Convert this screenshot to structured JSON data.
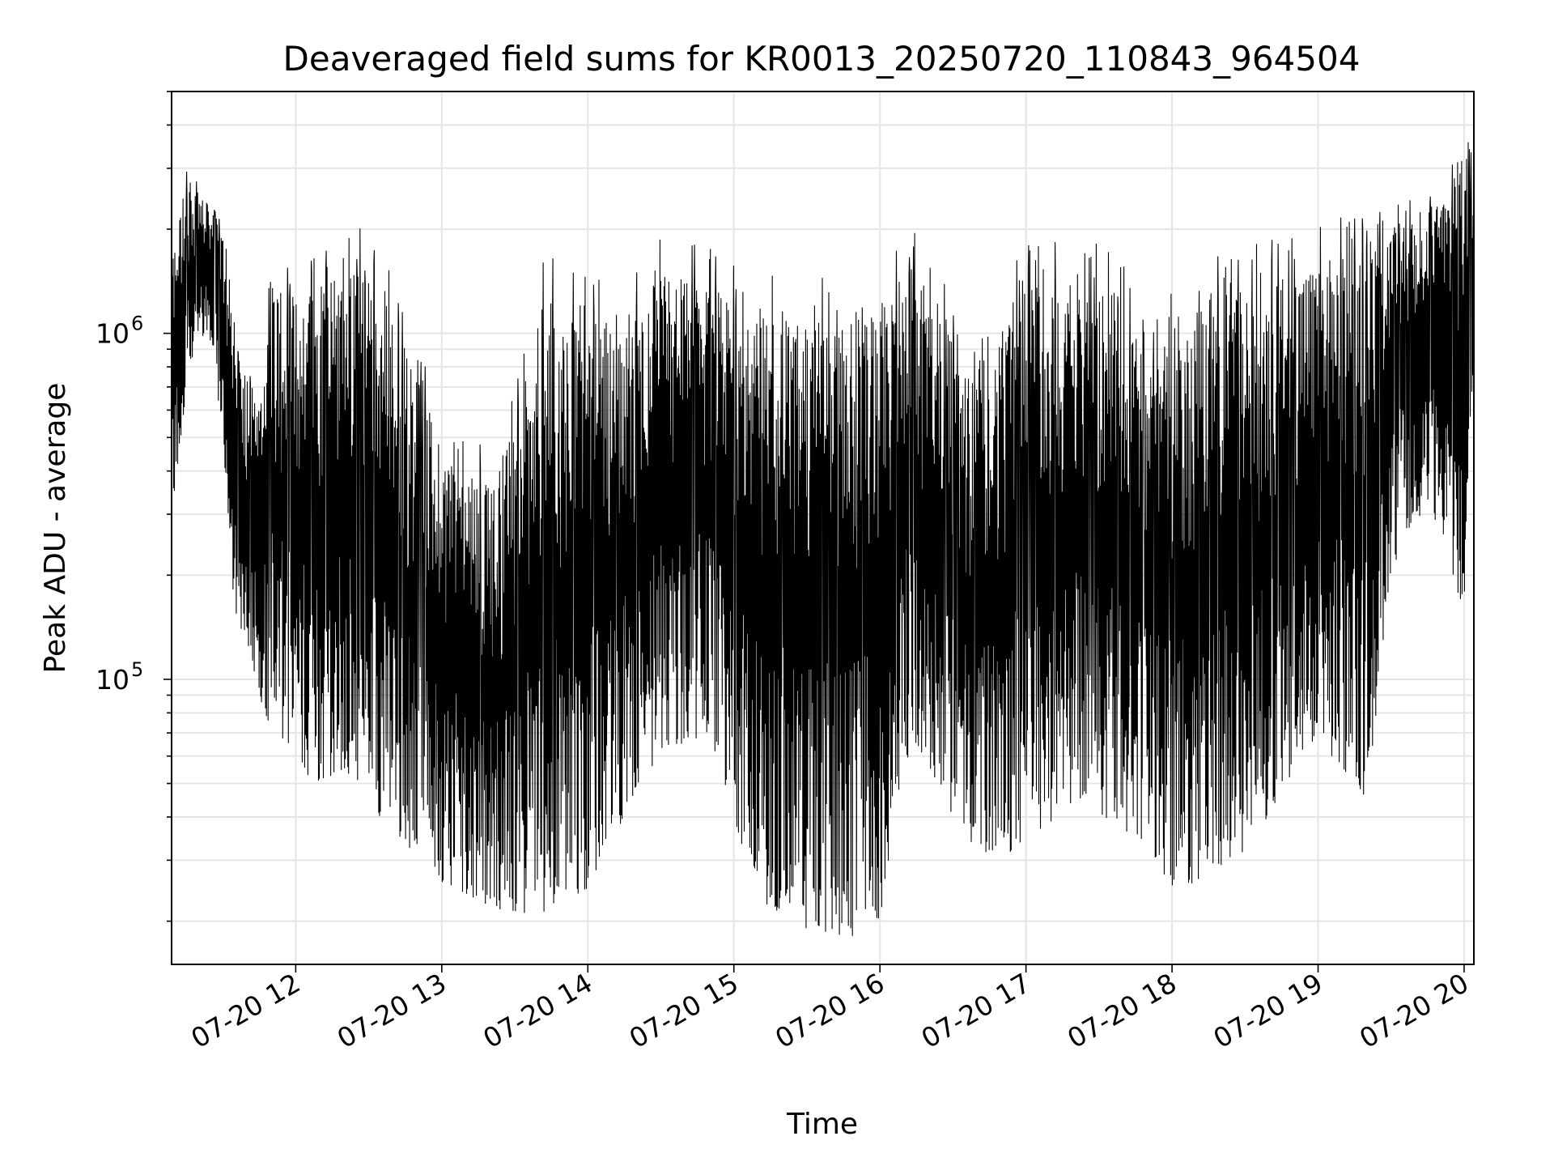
{
  "chart_data": {
    "type": "line",
    "title": "Deaveraged field sums for KR0013_20250720_110843_964504",
    "xlabel": "Time",
    "ylabel": "Peak ADU - average",
    "x_tick_labels": [
      "07-20 12",
      "07-20 13",
      "07-20 14",
      "07-20 15",
      "07-20 16",
      "07-20 17",
      "07-20 18",
      "07-20 19",
      "07-20 20"
    ],
    "y_tick_labels": [
      {
        "base": "10",
        "exp": "5",
        "value": 100000
      },
      {
        "base": "10",
        "exp": "6",
        "value": 1000000
      }
    ],
    "xlim": [
      "2025-07-20 11:09",
      "2025-07-20 20:04"
    ],
    "ylim": [
      15000,
      5000000
    ],
    "y_scale": "log",
    "grid": true,
    "line_color": "#000000",
    "grid_color": "#e5e5e5",
    "series": [
      {
        "x": [
          "11:09",
          "11:15",
          "11:20",
          "11:25",
          "11:30",
          "11:35",
          "11:40",
          "11:45",
          "11:50",
          "11:55",
          "12:00",
          "12:10",
          "12:20",
          "12:30",
          "12:40",
          "12:50",
          "13:00",
          "13:10",
          "13:20",
          "13:30",
          "13:40",
          "13:50",
          "14:00",
          "14:10",
          "14:20",
          "14:30",
          "14:40",
          "14:50",
          "15:00",
          "15:10",
          "15:20",
          "15:30",
          "15:40",
          "15:50",
          "16:00",
          "16:10",
          "16:20",
          "16:30",
          "16:40",
          "16:50",
          "17:00",
          "17:10",
          "17:20",
          "17:30",
          "17:40",
          "17:50",
          "18:00",
          "18:10",
          "18:20",
          "18:30",
          "18:40",
          "18:50",
          "19:00",
          "19:10",
          "19:20",
          "19:30",
          "19:40",
          "19:50",
          "20:00",
          "20:04"
        ],
        "upper": [
          1700000,
          2800000,
          2600000,
          2300000,
          2000000,
          900000,
          800000,
          600000,
          1500000,
          1400000,
          1300000,
          1500000,
          1600000,
          1500000,
          1300000,
          700000,
          500000,
          450000,
          350000,
          550000,
          1200000,
          1250000,
          1200000,
          1100000,
          1200000,
          1500000,
          1450000,
          1400000,
          1200000,
          1150000,
          1100000,
          1100000,
          1050000,
          1100000,
          1200000,
          1600000,
          1500000,
          900000,
          700000,
          1000000,
          1400000,
          1450000,
          1300000,
          1400000,
          1200000,
          900000,
          1000000,
          1100000,
          1300000,
          1350000,
          1400000,
          1500000,
          1600000,
          1700000,
          1900000,
          2000000,
          2100000,
          2400000,
          3500000,
          3200000
        ],
        "lower": [
          260000,
          700000,
          1000000,
          950000,
          500000,
          150000,
          130000,
          90000,
          70000,
          60000,
          55000,
          50000,
          55000,
          45000,
          35000,
          30000,
          26000,
          24000,
          22000,
          21000,
          21000,
          22000,
          25000,
          35000,
          45000,
          60000,
          65000,
          70000,
          40000,
          23000,
          21000,
          19000,
          18000,
          17500,
          20000,
          60000,
          55000,
          40000,
          32000,
          30000,
          35000,
          38000,
          45000,
          40000,
          36000,
          34000,
          24000,
          26000,
          29000,
          32000,
          40000,
          55000,
          60000,
          55000,
          45000,
          200000,
          300000,
          280000,
          150000,
          800000
        ]
      }
    ]
  }
}
